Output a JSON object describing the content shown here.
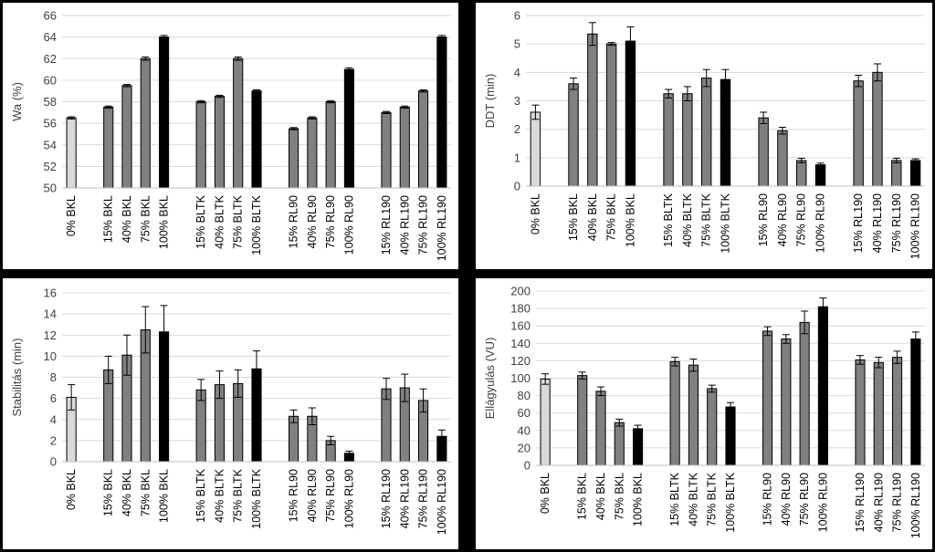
{
  "colors": {
    "control": "#d9d9d9",
    "partial": "#808080",
    "full": "#000000",
    "grid": "#d9d9d9",
    "error_bar": "#000000"
  },
  "chart_data": [
    {
      "type": "bar",
      "ylabel": "Wa (%)",
      "ylim": [
        50,
        66
      ],
      "yticks": [
        50,
        52,
        54,
        56,
        58,
        60,
        62,
        64,
        66
      ],
      "grid": true,
      "categories": [
        "0% BKL",
        "15% BKL",
        "40% BKL",
        "75% BKL",
        "100% BKL",
        "15% BLTK",
        "40% BLTK",
        "75% BLTK",
        "100% BLTK",
        "15% RL90",
        "40% RL90",
        "75% RL90",
        "100% RL90",
        "15% RL190",
        "40% RL190",
        "75% RL190",
        "100% RL190"
      ],
      "values": [
        56.5,
        57.5,
        59.5,
        62.0,
        64.0,
        58.0,
        58.5,
        62.0,
        59.0,
        55.5,
        56.5,
        58.0,
        61.0,
        57.0,
        57.5,
        59.0,
        64.0
      ],
      "errors": [
        0.1,
        0.1,
        0.1,
        0.15,
        0.15,
        0.1,
        0.1,
        0.15,
        0.1,
        0.1,
        0.1,
        0.1,
        0.15,
        0.1,
        0.1,
        0.1,
        0.15
      ]
    },
    {
      "type": "bar",
      "ylabel": "DDT (min)",
      "ylim": [
        0,
        6
      ],
      "yticks": [
        0,
        1,
        2,
        3,
        4,
        5,
        6
      ],
      "grid": true,
      "categories": [
        "0% BKL",
        "15% BKL",
        "40% BKL",
        "75% BKL",
        "100% BKL",
        "15% BLTK",
        "40% BLTK",
        "75% BLTK",
        "100% BLTK",
        "15% RL90",
        "40% RL90",
        "75% RL90",
        "100% RL90",
        "15% RL190",
        "40% RL190",
        "75% RL190",
        "100% RL190"
      ],
      "values": [
        2.6,
        3.6,
        5.35,
        5.0,
        5.1,
        3.25,
        3.25,
        3.8,
        3.75,
        2.4,
        1.95,
        0.9,
        0.75,
        3.7,
        4.0,
        0.9,
        0.9
      ],
      "errors": [
        0.25,
        0.2,
        0.4,
        0.05,
        0.5,
        0.15,
        0.25,
        0.3,
        0.35,
        0.2,
        0.12,
        0.08,
        0.06,
        0.2,
        0.3,
        0.08,
        0.06
      ]
    },
    {
      "type": "bar",
      "ylabel": "Stabilitás (min)",
      "ylim": [
        0,
        16
      ],
      "yticks": [
        0,
        2,
        4,
        6,
        8,
        10,
        12,
        14,
        16
      ],
      "grid": true,
      "categories": [
        "0% BKL",
        "15% BKL",
        "40% BKL",
        "75% BKL",
        "100% BKL",
        "15% BLTK",
        "40% BLTK",
        "75% BLTK",
        "100% BLTK",
        "15% RL90",
        "40% RL90",
        "75% RL90",
        "100% RL90",
        "15% RL190",
        "40% RL190",
        "75% RL190",
        "100% RL190"
      ],
      "values": [
        6.1,
        8.7,
        10.1,
        12.5,
        12.3,
        6.8,
        7.3,
        7.4,
        8.8,
        4.3,
        4.3,
        2.0,
        0.8,
        6.9,
        7.0,
        5.8,
        2.4
      ],
      "errors": [
        1.2,
        1.3,
        1.9,
        2.2,
        2.5,
        1.0,
        1.3,
        1.3,
        1.7,
        0.6,
        0.8,
        0.4,
        0.2,
        1.0,
        1.3,
        1.1,
        0.6
      ]
    },
    {
      "type": "bar",
      "ylabel": "Ellágyulás (VU)",
      "ylim": [
        0,
        200
      ],
      "yticks": [
        0,
        20,
        40,
        60,
        80,
        100,
        120,
        140,
        160,
        180,
        200
      ],
      "grid": true,
      "categories": [
        "0% BKL",
        "15% BKL",
        "40% BKL",
        "75% BKL",
        "100% BKL",
        "15% BLTK",
        "40% BLTK",
        "75% BLTK",
        "100% BLTK",
        "15% RL90",
        "40% RL90",
        "75% RL90",
        "100% RL90",
        "15% RL190",
        "40% RL190",
        "75% RL190",
        "100% RL190"
      ],
      "values": [
        99,
        103,
        85,
        49,
        42,
        119,
        115,
        88,
        67,
        154,
        145,
        164,
        182,
        121,
        118,
        124,
        145
      ],
      "errors": [
        6,
        4,
        5,
        4,
        4,
        5,
        7,
        4,
        5,
        5,
        5,
        13,
        10,
        5,
        6,
        7,
        8
      ]
    }
  ]
}
